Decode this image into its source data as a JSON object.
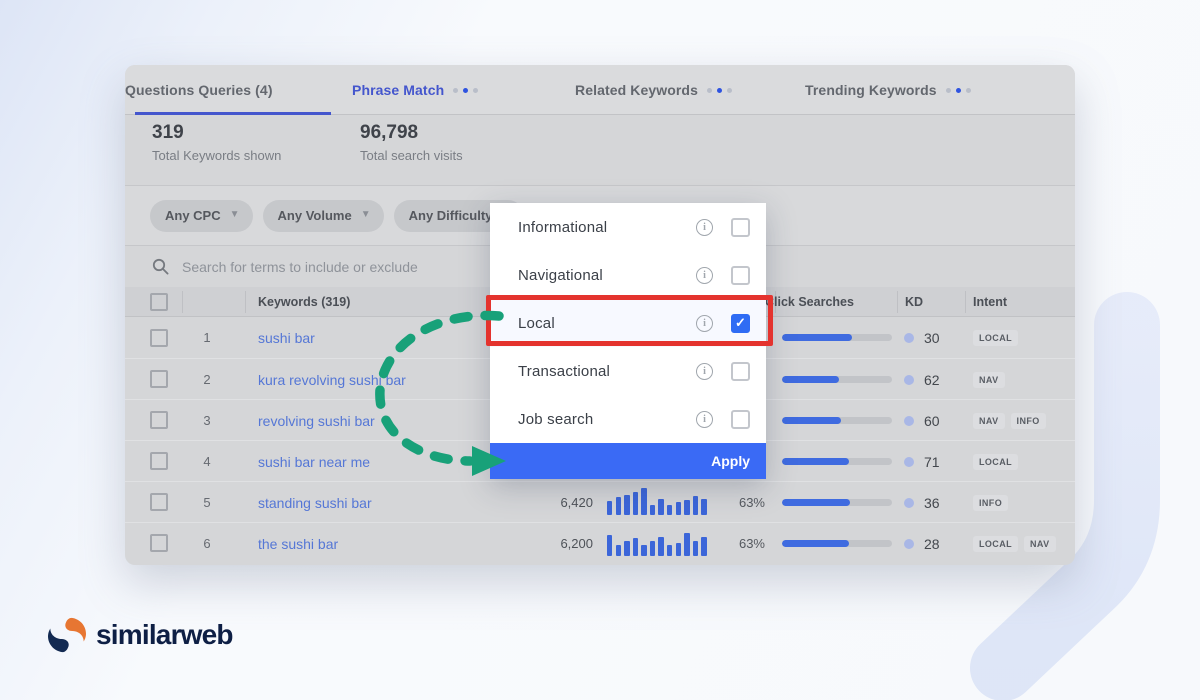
{
  "brand": {
    "name": "similarweb"
  },
  "tabs": [
    {
      "label": "Phrase Match",
      "active": true,
      "has_dots": true
    },
    {
      "label": "Related Keywords",
      "active": false,
      "has_dots": true
    },
    {
      "label": "Trending Keywords",
      "active": false,
      "has_dots": true
    },
    {
      "label": "Questions Queries (4)",
      "active": false,
      "has_dots": false
    }
  ],
  "stats": [
    {
      "value": "319",
      "label": "Total Keywords shown"
    },
    {
      "value": "96,798",
      "label": "Total search visits"
    }
  ],
  "filters": [
    {
      "label": "Any CPC"
    },
    {
      "label": "Any Volume"
    },
    {
      "label": "Any Difficulty"
    }
  ],
  "search": {
    "placeholder": "Search for terms to include or exclude"
  },
  "table": {
    "headers": {
      "keywords": "Keywords (319)",
      "click_searches": "Click Searches",
      "kd": "KD",
      "intent": "Intent"
    },
    "rows": [
      {
        "rank": "1",
        "keyword": "sushi bar",
        "volume": "",
        "share": "",
        "trend": null,
        "bar_fill": 64,
        "kd": "30",
        "intent": [
          "LOCAL"
        ]
      },
      {
        "rank": "2",
        "keyword": "kura revolving sushi bar",
        "volume": "",
        "share": "",
        "trend": null,
        "bar_fill": 52,
        "kd": "62",
        "intent": [
          "NAV"
        ]
      },
      {
        "rank": "3",
        "keyword": "revolving sushi bar",
        "volume": "",
        "share": "",
        "trend": null,
        "bar_fill": 54,
        "kd": "60",
        "intent": [
          "NAV",
          "INFO"
        ]
      },
      {
        "rank": "4",
        "keyword": "sushi bar near me",
        "volume": "",
        "share": "",
        "trend": null,
        "bar_fill": 61,
        "kd": "71",
        "intent": [
          "LOCAL"
        ]
      },
      {
        "rank": "5",
        "keyword": "standing sushi bar",
        "volume": "6,420",
        "share": "63%",
        "trend": [
          52,
          68,
          74,
          84,
          100,
          38,
          58,
          38,
          50,
          56,
          72,
          58
        ],
        "bar_fill": 62,
        "kd": "36",
        "intent": [
          "INFO"
        ]
      },
      {
        "rank": "6",
        "keyword": "the sushi bar",
        "volume": "6,200",
        "share": "63%",
        "trend": [
          76,
          40,
          54,
          66,
          40,
          54,
          70,
          40,
          48,
          86,
          54,
          70
        ],
        "bar_fill": 61,
        "kd": "28",
        "intent": [
          "LOCAL",
          "NAV"
        ]
      }
    ]
  },
  "dropdown": {
    "items": [
      {
        "label": "Informational",
        "checked": false,
        "highlighted": false
      },
      {
        "label": "Navigational",
        "checked": false,
        "highlighted": false
      },
      {
        "label": "Local",
        "checked": true,
        "highlighted": true
      },
      {
        "label": "Transactional",
        "checked": false,
        "highlighted": false
      },
      {
        "label": "Job search",
        "checked": false,
        "highlighted": false
      }
    ],
    "apply_label": "Apply",
    "check_glyph": "✓"
  },
  "annotations": {
    "highlighted_option": "Local",
    "arrow_points_to": "Apply"
  },
  "colors": {
    "accent_blue": "#3a6af5",
    "active_tab_blue": "#4456cd",
    "link_blue": "#5577d6",
    "arrow_green": "#18a179",
    "highlight_red": "#e4332e",
    "kd_dot": "#a9b7e6",
    "brand_navy": "#0e1f45",
    "brand_orange": "#e77632"
  }
}
